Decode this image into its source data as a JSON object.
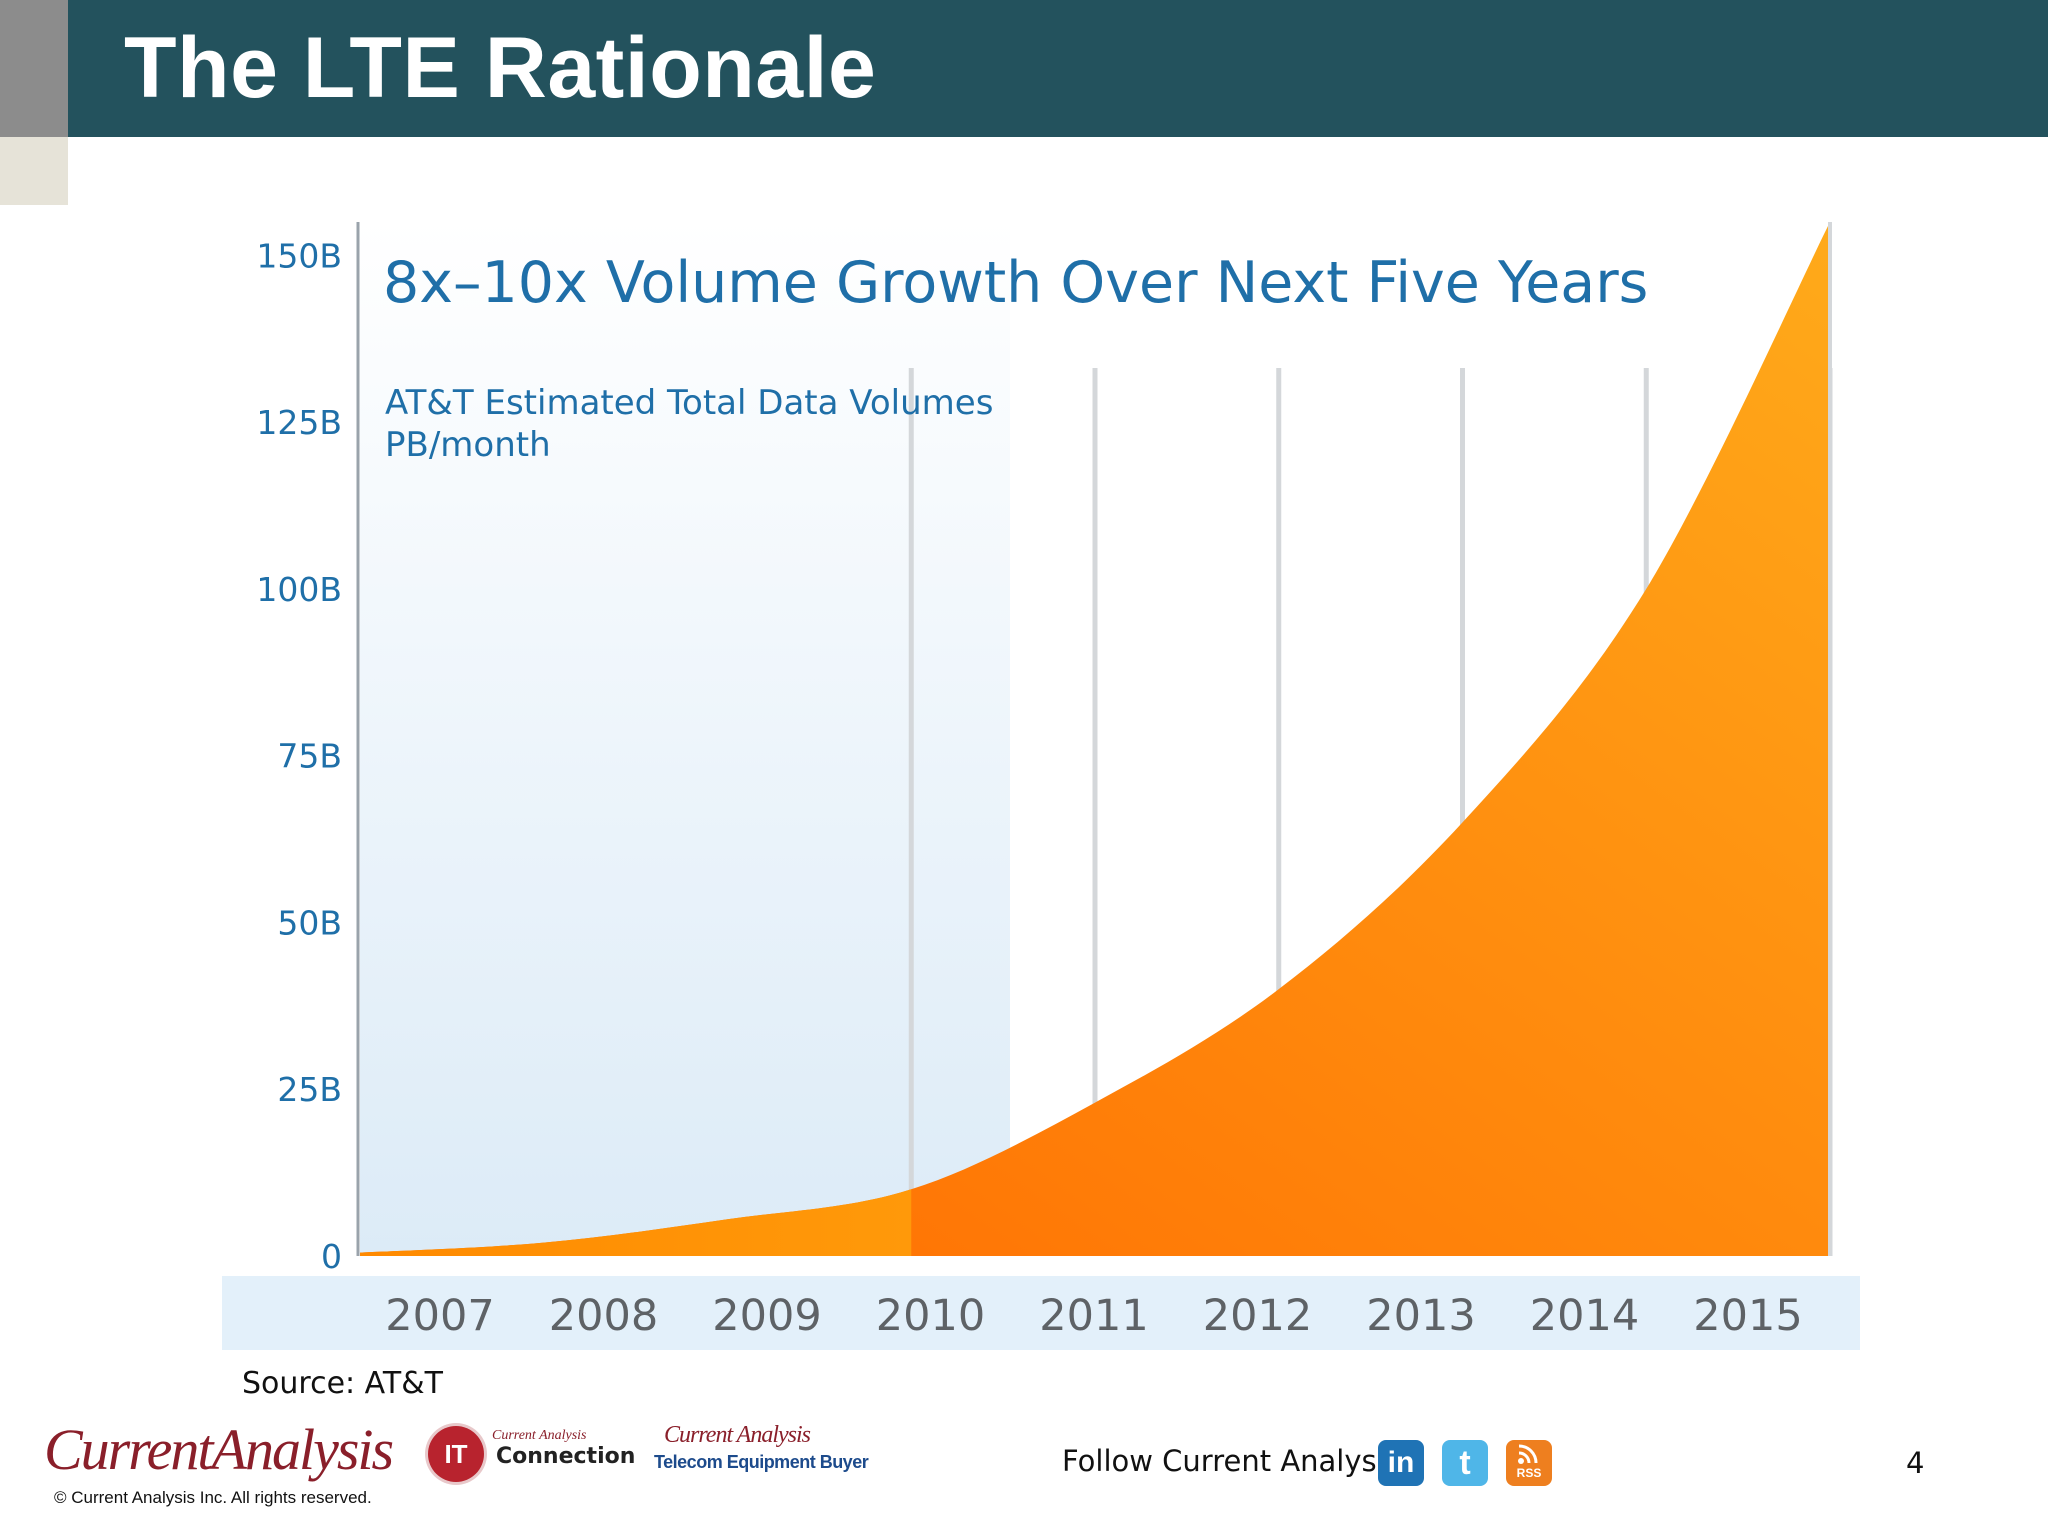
{
  "header": {
    "title": "The LTE Rationale"
  },
  "chart_data": {
    "type": "area",
    "title": "8x–10x Volume Growth Over Next Five Years",
    "subtitle_lines": [
      "AT&T Estimated Total Data Volumes",
      "PB/month"
    ],
    "categories": [
      "2007",
      "2008",
      "2009",
      "2010",
      "2011",
      "2012",
      "2013",
      "2014",
      "2015"
    ],
    "values": [
      0.5,
      2,
      5.5,
      10,
      23,
      40,
      65,
      100,
      155
    ],
    "ylim": [
      0,
      155
    ],
    "y_ticks": [
      0,
      25,
      50,
      75,
      100,
      125,
      150
    ],
    "y_tick_labels": [
      "0",
      "25B",
      "50B",
      "75B",
      "100B",
      "125B",
      "150B"
    ],
    "grid": "vertical lines from 2011",
    "colors": {
      "area_dark": "#ff6a00",
      "area_light": "#ffaa1a",
      "text": "#1f6fa8",
      "band": "#e3f0fa"
    }
  },
  "source": "Source: AT&T",
  "footer": {
    "logo_current": "Current",
    "logo_analysis": "Analysis",
    "copyright": "© Current Analysis Inc. All rights reserved.",
    "itc_badge": "IT",
    "itc_small": "Current Analysis",
    "itc_big": "Connection",
    "teb_top": "Current Analysis",
    "teb_bottom": "Telecom Equipment Buyer",
    "follow": "Follow Current Analysis",
    "linkedin": "in",
    "twitter": "t",
    "rss": "RSS",
    "page_number": "4"
  }
}
